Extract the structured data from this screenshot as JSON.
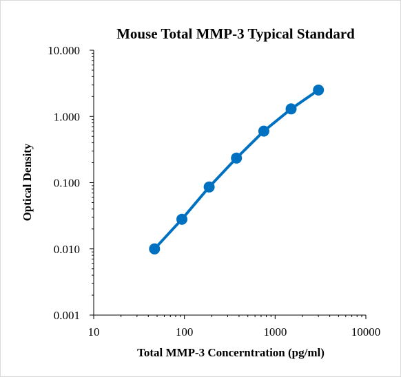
{
  "chart_data": {
    "type": "line",
    "title": "Mouse Total MMP-3 Typical Standard",
    "xlabel": "Total MMP-3  Concerntration (pg/ml)",
    "ylabel": "Optical Density",
    "x_scale": "log",
    "y_scale": "log",
    "xlim": [
      10,
      10000
    ],
    "ylim": [
      0.001,
      10
    ],
    "x_ticks": [
      "10",
      "100",
      "1000",
      "10000"
    ],
    "y_ticks": [
      "0.001",
      "0.010",
      "0.100",
      "1.000",
      "10.000"
    ],
    "grid": false,
    "series": [
      {
        "color": "#0070c0",
        "x": [
          46.88,
          93.75,
          187.5,
          375,
          750,
          1500,
          3000
        ],
        "y": [
          0.01,
          0.028,
          0.086,
          0.235,
          0.6,
          1.3,
          2.5
        ]
      }
    ]
  }
}
